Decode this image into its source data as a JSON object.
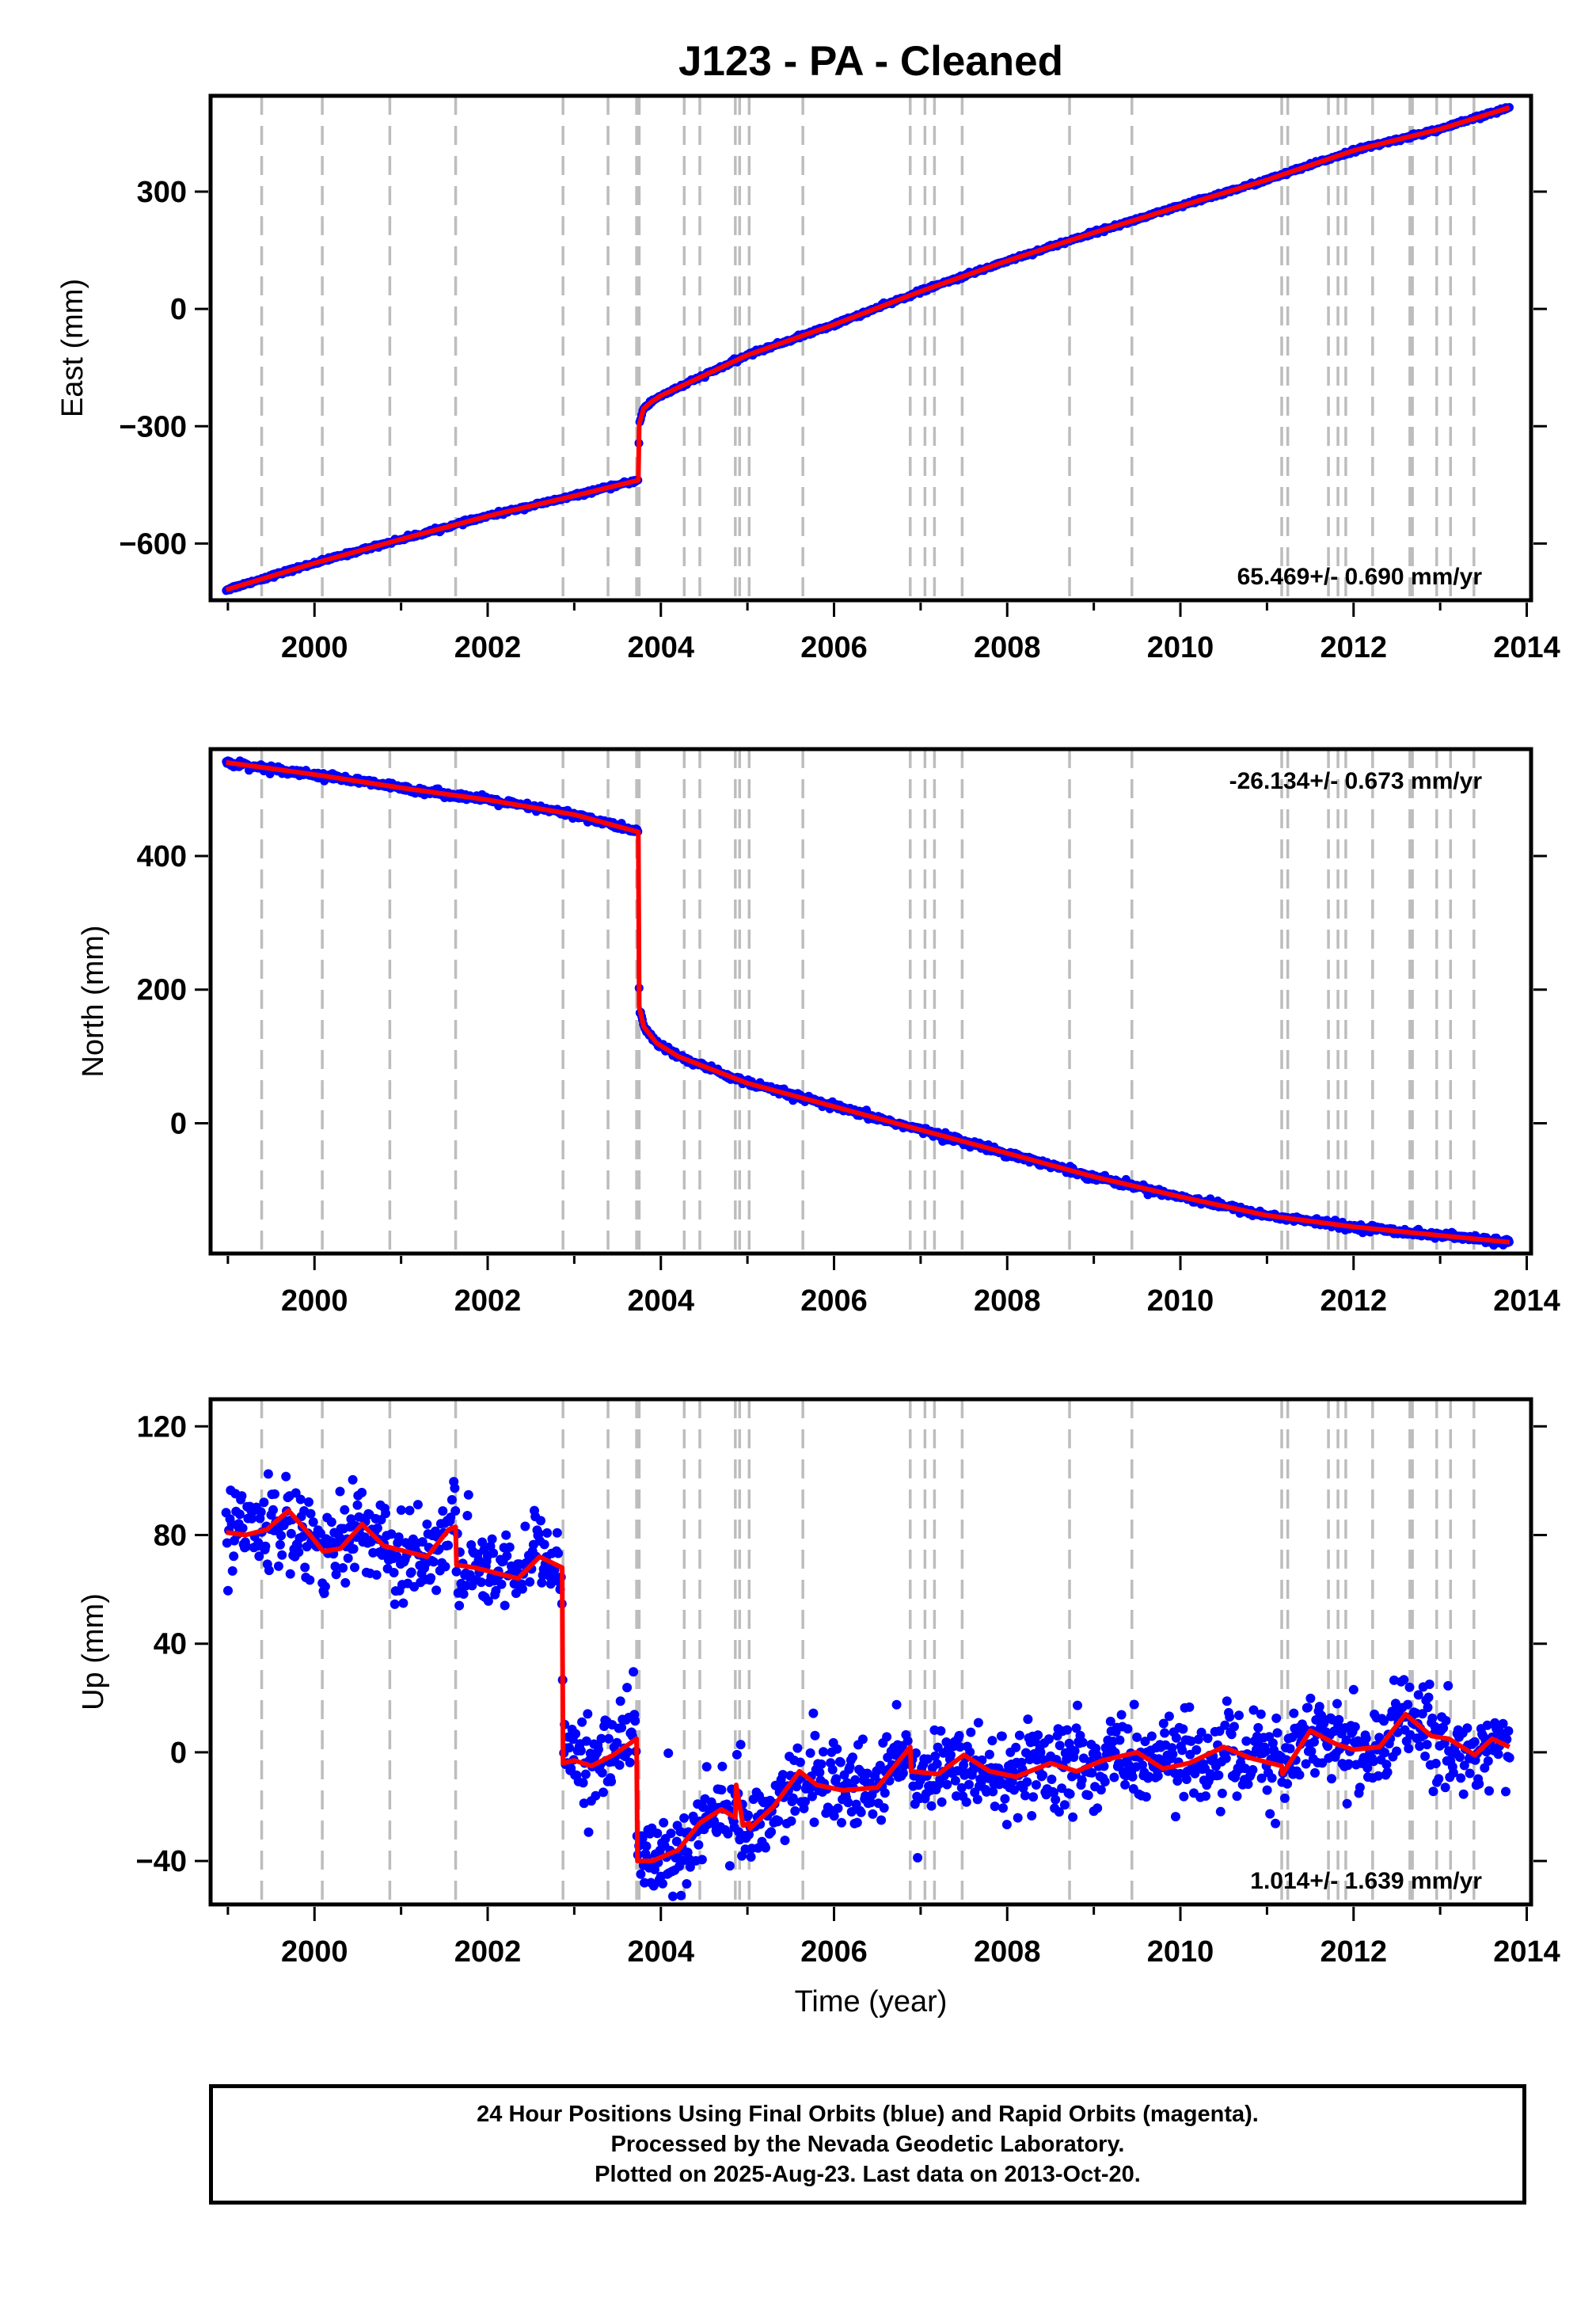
{
  "title": "J123  - PA - Cleaned",
  "xlabel": "Time (year)",
  "footer": {
    "line1": "24 Hour Positions Using Final Orbits (blue) and Rapid Orbits (magenta).",
    "line2": "Processed by the Nevada Geodetic Laboratory.",
    "line3": "Plotted on 2025-Aug-23. Last data on 2013-Oct-20."
  },
  "colors": {
    "points": "#0000ff",
    "model": "#ff0000",
    "event_lines": "#bdbdbd",
    "axes": "#000000"
  },
  "chart_data": [
    {
      "type": "scatter",
      "component": "east",
      "ylabel": "East (mm)",
      "xlim": [
        1998.8,
        2014.05
      ],
      "ylim": [
        -745,
        545
      ],
      "x_ticks": [
        2000,
        2002,
        2004,
        2006,
        2008,
        2010,
        2012,
        2014
      ],
      "y_ticks": [
        -600,
        -300,
        0,
        300
      ],
      "rate_label": "65.469+/- 0.690 mm/yr",
      "rate_position": "bottom-right",
      "grid": false,
      "data_range": [
        1998.98,
        2013.8
      ],
      "event_lines": [
        1999.39,
        2000.09,
        2000.87,
        2001.63,
        2002.87,
        2003.39,
        2003.72,
        2003.75,
        2004.27,
        2004.45,
        2004.86,
        2004.91,
        2005.02,
        2005.64,
        2006.88,
        2007.05,
        2007.16,
        2007.48,
        2008.72,
        2009.44,
        2011.17,
        2011.24,
        2011.71,
        2011.82,
        2011.91,
        2012.22,
        2012.65,
        2012.68,
        2012.96,
        2013.12,
        2013.39
      ],
      "series": [
        {
          "name": "model",
          "x": [
            1998.98,
            2000.0,
            2001.0,
            2002.0,
            2003.0,
            2003.74,
            2003.75,
            2003.8,
            2003.9,
            2004.0,
            2005.0,
            2006.0,
            2007.0,
            2008.0,
            2009.0,
            2010.0,
            2011.0,
            2012.0,
            2013.0,
            2013.8
          ],
          "y": [
            -718,
            -650,
            -589,
            -530,
            -478,
            -438,
            -295,
            -255,
            -236,
            -222,
            -118,
            -40,
            45,
            123,
            195,
            263,
            330,
            405,
            460,
            515
          ]
        }
      ]
    },
    {
      "type": "scatter",
      "component": "north",
      "ylabel": "North (mm)",
      "xlim": [
        1998.8,
        2014.05
      ],
      "ylim": [
        -195,
        560
      ],
      "x_ticks": [
        2000,
        2002,
        2004,
        2006,
        2008,
        2010,
        2012,
        2014
      ],
      "y_ticks": [
        0,
        200,
        400
      ],
      "rate_label": "-26.134+/- 0.673 mm/yr",
      "rate_position": "top-right",
      "grid": false,
      "data_range": [
        1998.98,
        2013.8
      ],
      "event_lines": [
        1999.39,
        2000.09,
        2000.87,
        2001.63,
        2002.87,
        2003.39,
        2003.72,
        2003.75,
        2004.27,
        2004.45,
        2004.86,
        2004.91,
        2005.02,
        2005.64,
        2006.88,
        2007.05,
        2007.16,
        2007.48,
        2008.72,
        2009.44,
        2011.17,
        2011.24,
        2011.71,
        2011.82,
        2011.91,
        2012.22,
        2012.65,
        2012.68,
        2012.96,
        2013.12,
        2013.39
      ],
      "series": [
        {
          "name": "model",
          "x": [
            1998.98,
            2000.0,
            2001.0,
            2002.0,
            2003.0,
            2003.74,
            2003.75,
            2003.8,
            2003.95,
            2004.2,
            2005.0,
            2006.0,
            2007.0,
            2008.0,
            2009.0,
            2010.0,
            2011.0,
            2012.0,
            2013.0,
            2013.8
          ],
          "y": [
            540,
            522,
            502,
            484,
            462,
            436,
            175,
            145,
            120,
            100,
            60,
            25,
            -10,
            -45,
            -80,
            -110,
            -138,
            -155,
            -168,
            -178
          ]
        }
      ]
    },
    {
      "type": "scatter",
      "component": "up",
      "ylabel": "Up (mm)",
      "xlim": [
        1998.8,
        2014.05
      ],
      "ylim": [
        -56,
        130
      ],
      "x_ticks": [
        2000,
        2002,
        2004,
        2006,
        2008,
        2010,
        2012,
        2014
      ],
      "y_ticks": [
        -40,
        0,
        40,
        80,
        120
      ],
      "rate_label": "1.014+/- 1.639 mm/yr",
      "rate_position": "bottom-right",
      "grid": false,
      "data_range": [
        1998.98,
        2013.8
      ],
      "event_lines": [
        1999.39,
        2000.09,
        2000.87,
        2001.63,
        2002.87,
        2003.39,
        2003.72,
        2003.75,
        2004.27,
        2004.45,
        2004.86,
        2004.91,
        2005.02,
        2005.64,
        2006.88,
        2007.05,
        2007.16,
        2007.48,
        2008.72,
        2009.44,
        2011.17,
        2011.24,
        2011.71,
        2011.82,
        2011.91,
        2012.22,
        2012.65,
        2012.68,
        2012.96,
        2013.12,
        2013.39
      ],
      "series": [
        {
          "name": "model",
          "x": [
            1998.98,
            1999.2,
            1999.45,
            1999.7,
            1999.95,
            2000.1,
            2000.3,
            2000.55,
            2000.8,
            2001.05,
            2001.3,
            2001.55,
            2001.63,
            2001.64,
            2001.85,
            2002.1,
            2002.35,
            2002.6,
            2002.86,
            2002.87,
            2003.0,
            2003.2,
            2003.45,
            2003.72,
            2003.73,
            2003.9,
            2004.2,
            2004.45,
            2004.7,
            2004.86,
            2004.87,
            2004.95,
            2005.02,
            2005.03,
            2005.3,
            2005.6,
            2005.8,
            2006.1,
            2006.5,
            2006.88,
            2006.89,
            2007.2,
            2007.5,
            2007.8,
            2008.1,
            2008.5,
            2008.8,
            2009.1,
            2009.5,
            2009.8,
            2010.1,
            2010.5,
            2010.8,
            2011.17,
            2011.18,
            2011.5,
            2011.8,
            2012.0,
            2012.3,
            2012.6,
            2012.9,
            2013.1,
            2013.4,
            2013.6,
            2013.8
          ],
          "y": [
            81,
            80,
            82,
            89,
            80,
            74,
            75,
            84,
            76,
            74,
            72,
            82,
            83,
            69,
            68,
            66,
            64,
            72,
            68,
            -4,
            -3,
            -5,
            -1,
            5,
            -40,
            -40,
            -36,
            -26,
            -21,
            -24,
            -12,
            -27,
            -26,
            -28,
            -20,
            -7,
            -12,
            -14,
            -13,
            2,
            -7,
            -8,
            -1,
            -7,
            -9,
            -4,
            -7,
            -3,
            0,
            -6,
            -4,
            2,
            -2,
            -5,
            -8,
            8,
            3,
            1,
            2,
            14,
            6,
            5,
            -1,
            5,
            2
          ]
        }
      ]
    }
  ]
}
